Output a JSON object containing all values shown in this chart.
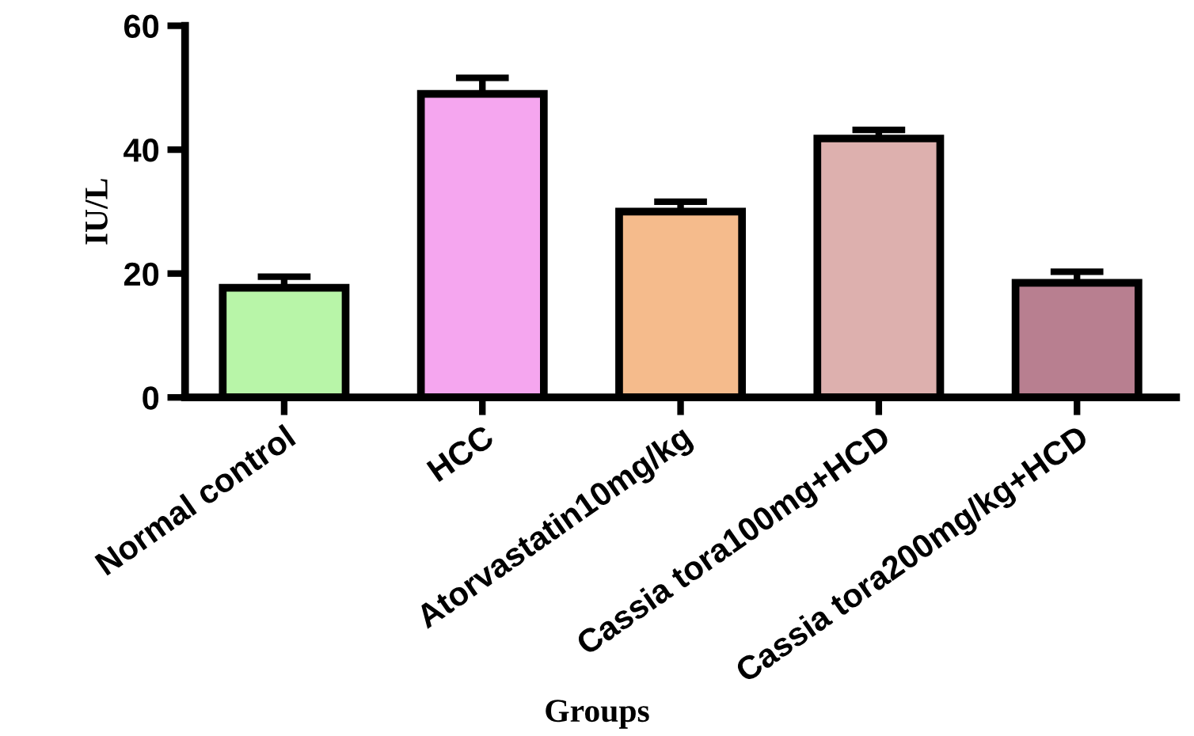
{
  "chart_data": {
    "type": "bar",
    "xlabel": "Groups",
    "ylabel": "IU/L",
    "categories": [
      "Normal control",
      "HCC",
      "Atorvastatin10mg/kg",
      "Cassia tora100mg+HCD",
      "Cassia tora200mg/kg+HCD"
    ],
    "values": [
      17.7,
      49,
      30,
      41.8,
      18.5
    ],
    "errors": [
      1.8,
      2.6,
      1.6,
      1.4,
      1.8
    ],
    "colors": [
      "#b8f5a8",
      "#f5a6ef",
      "#f5bb8c",
      "#ddb0ae",
      "#b87f90"
    ],
    "ylim": [
      0,
      60
    ],
    "yticks": [
      0,
      20,
      40,
      60
    ],
    "grid": false,
    "legend": false
  }
}
